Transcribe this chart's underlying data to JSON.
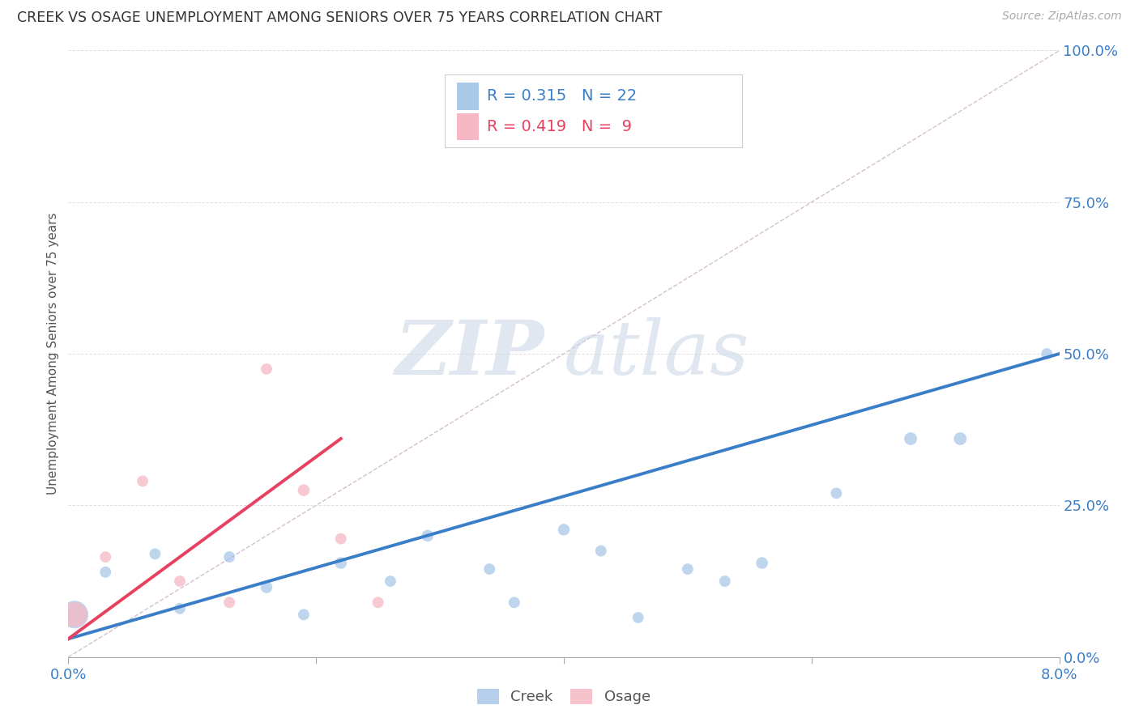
{
  "title": "CREEK VS OSAGE UNEMPLOYMENT AMONG SENIORS OVER 75 YEARS CORRELATION CHART",
  "source": "Source: ZipAtlas.com",
  "ylabel": "Unemployment Among Seniors over 75 years",
  "xlim": [
    0.0,
    0.08
  ],
  "ylim": [
    0.0,
    1.0
  ],
  "creek_color": "#aac8e8",
  "osage_color": "#f5b8c4",
  "creek_line_color": "#3a7ec8",
  "osage_line_color": "#e84060",
  "diag_line_color": "#d0b8c8",
  "creek_R": 0.315,
  "creek_N": 22,
  "osage_R": 0.419,
  "osage_N": 9,
  "creek_scatter_x": [
    0.0005,
    0.003,
    0.007,
    0.009,
    0.013,
    0.016,
    0.019,
    0.022,
    0.026,
    0.029,
    0.034,
    0.036,
    0.04,
    0.043,
    0.046,
    0.05,
    0.053,
    0.056,
    0.062,
    0.068,
    0.072,
    0.079
  ],
  "creek_scatter_y": [
    0.07,
    0.14,
    0.17,
    0.08,
    0.165,
    0.115,
    0.07,
    0.155,
    0.125,
    0.2,
    0.145,
    0.09,
    0.21,
    0.175,
    0.065,
    0.145,
    0.125,
    0.155,
    0.27,
    0.36,
    0.36,
    0.5
  ],
  "creek_scatter_size": [
    600,
    100,
    100,
    100,
    100,
    110,
    100,
    110,
    100,
    110,
    100,
    100,
    110,
    100,
    100,
    100,
    100,
    110,
    100,
    130,
    130,
    100
  ],
  "osage_scatter_x": [
    0.0005,
    0.003,
    0.006,
    0.009,
    0.013,
    0.016,
    0.019,
    0.022,
    0.025
  ],
  "osage_scatter_y": [
    0.07,
    0.165,
    0.29,
    0.125,
    0.09,
    0.475,
    0.275,
    0.195,
    0.09
  ],
  "osage_scatter_size": [
    500,
    100,
    100,
    100,
    100,
    100,
    110,
    100,
    100
  ],
  "creek_line_x": [
    0.0,
    0.08
  ],
  "creek_line_y": [
    0.03,
    0.5
  ],
  "osage_line_x": [
    0.0,
    0.022
  ],
  "osage_line_y": [
    0.03,
    0.36
  ],
  "watermark_zip": "ZIP",
  "watermark_atlas": "atlas",
  "background_color": "#ffffff",
  "legend_border_color": "#cccccc",
  "grid_color": "#e0e0e0",
  "ytick_vals": [
    0.0,
    0.25,
    0.5,
    0.75,
    1.0
  ],
  "ytick_labels": [
    "0.0%",
    "25.0%",
    "50.0%",
    "75.0%",
    "100.0%"
  ]
}
